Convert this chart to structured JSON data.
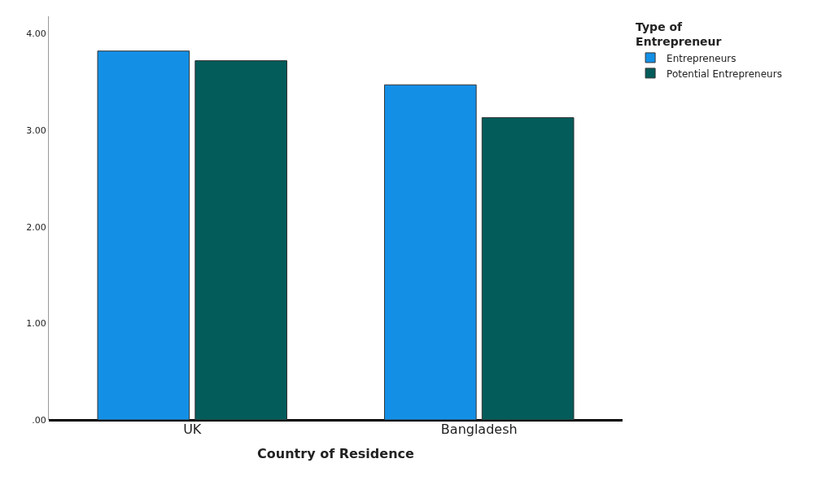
{
  "chart_data": {
    "type": "bar",
    "xlabel": "Country of Residence",
    "legend_title": "Type of Entrepreneur",
    "categories": [
      "UK",
      "Bangladesh"
    ],
    "series": [
      {
        "name": "Entrepreneurs",
        "color": "#1390e6",
        "values": [
          3.82,
          3.47
        ]
      },
      {
        "name": "Potential Entrepreneurs",
        "color": "#035c5a",
        "values": [
          3.72,
          3.13
        ]
      }
    ],
    "ylim": [
      0,
      4.18
    ],
    "yticks": [
      {
        "value": 0,
        "label": ".00"
      },
      {
        "value": 1,
        "label": "1.00"
      },
      {
        "value": 2,
        "label": "2.00"
      },
      {
        "value": 3,
        "label": "3.00"
      },
      {
        "value": 4,
        "label": "4.00"
      }
    ],
    "legend": "top right"
  }
}
